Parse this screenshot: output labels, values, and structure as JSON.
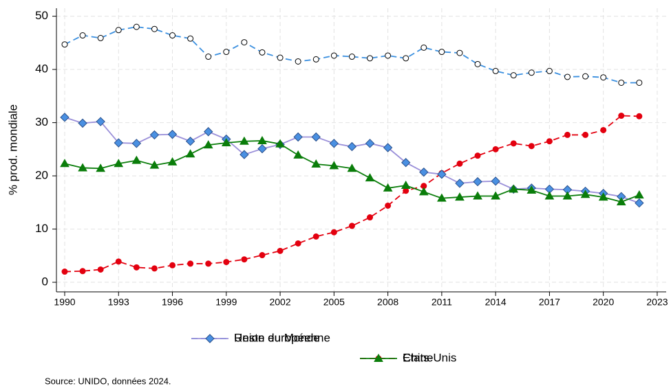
{
  "chart_data": {
    "type": "line",
    "y_label": "% prod. mondiale",
    "source": "Source: UNIDO, données 2024.",
    "x": [
      1990,
      1991,
      1992,
      1993,
      1994,
      1995,
      1996,
      1997,
      1998,
      1999,
      2000,
      2001,
      2002,
      2003,
      2004,
      2005,
      2006,
      2007,
      2008,
      2009,
      2010,
      2011,
      2012,
      2013,
      2014,
      2015,
      2016,
      2017,
      2018,
      2019,
      2020,
      2021,
      2022
    ],
    "xlim": [
      1989.54,
      2023.5
    ],
    "xticks": [
      1990,
      1993,
      1996,
      1999,
      2002,
      2005,
      2008,
      2011,
      2014,
      2017,
      2020,
      2023
    ],
    "ylim": [
      -1.8,
      51.5
    ],
    "yticks": [
      0,
      10,
      20,
      30,
      40,
      50
    ],
    "grid": true,
    "series": [
      {
        "name": "Reste du Monde",
        "color": "#3a8fdf",
        "linestyle": "dashed",
        "marker": "circle",
        "marker_color": "#ffffff",
        "values": [
          44.7,
          46.4,
          45.9,
          47.4,
          48.0,
          47.6,
          46.4,
          45.8,
          42.4,
          43.3,
          45.1,
          43.2,
          42.2,
          41.5,
          41.9,
          42.6,
          42.4,
          42.1,
          42.6,
          42.1,
          44.1,
          43.3,
          43.1,
          41.0,
          39.7,
          38.9,
          39.4,
          39.7,
          38.6,
          38.7,
          38.5,
          37.5,
          37.5
        ]
      },
      {
        "name": "Chine",
        "color": "#e3000f",
        "linestyle": "dashed",
        "marker": "circle",
        "marker_color": "#e3000f",
        "values": [
          2.0,
          2.1,
          2.4,
          3.9,
          2.8,
          2.6,
          3.2,
          3.5,
          3.5,
          3.8,
          4.3,
          5.1,
          5.9,
          7.3,
          8.6,
          9.4,
          10.6,
          12.2,
          14.4,
          17.2,
          18.1,
          20.5,
          22.3,
          23.8,
          25.0,
          26.1,
          25.6,
          26.5,
          27.7,
          27.7,
          28.6,
          31.3,
          31.2
        ]
      },
      {
        "name": "Union européenne",
        "color": "#9a8fd9",
        "linestyle": "solid",
        "marker": "diamond",
        "marker_color": "#4a90e2",
        "values": [
          31.0,
          29.9,
          30.2,
          26.2,
          26.1,
          27.7,
          27.8,
          26.5,
          28.3,
          26.9,
          24.0,
          25.1,
          25.9,
          27.3,
          27.3,
          26.1,
          25.5,
          26.1,
          25.3,
          22.5,
          20.7,
          20.3,
          18.6,
          18.9,
          19.0,
          17.5,
          17.7,
          17.5,
          17.4,
          17.1,
          16.7,
          16.1,
          14.9
        ]
      },
      {
        "name": "Etats-Unis",
        "color": "#0a7d0a",
        "linestyle": "solid",
        "marker": "triangle",
        "marker_color": "#0a7d0a",
        "values": [
          22.3,
          21.5,
          21.4,
          22.3,
          22.9,
          22.0,
          22.6,
          24.1,
          25.8,
          26.2,
          26.5,
          26.6,
          26.0,
          23.9,
          22.2,
          21.9,
          21.4,
          19.6,
          17.7,
          18.2,
          17.0,
          15.8,
          16.0,
          16.2,
          16.2,
          17.5,
          17.3,
          16.2,
          16.2,
          16.5,
          16.0,
          15.1,
          16.4
        ]
      }
    ]
  }
}
